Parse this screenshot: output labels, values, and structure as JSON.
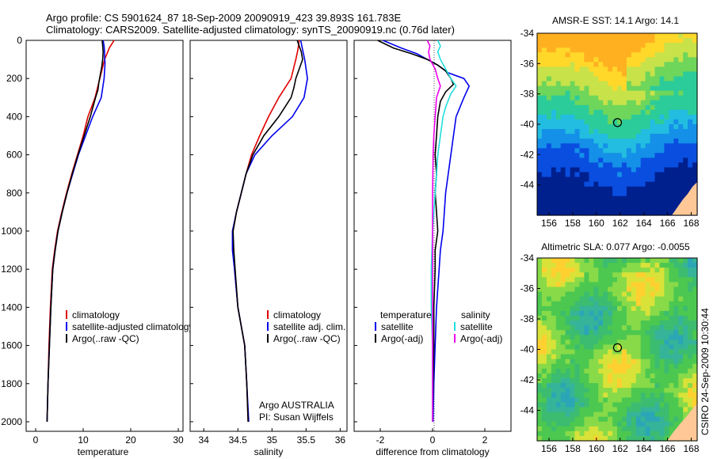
{
  "header": {
    "line1": "Argo profile: CS 5901624_87 18-Sep-2009 20090919_423 39.893S 161.783E",
    "line2": "Climatology: CARS2009. Satellite-adjusted climatology: synTS_20090919.nc (0.76d later)"
  },
  "side_label": "CSIRO 24-Sep-2009 10:30:44",
  "colors": {
    "climatology": "#e00000",
    "satellite": "#0000ee",
    "argo": "#000000",
    "sat_salinity": "#22dddd",
    "argo_salinity": "#ee00ee",
    "land": "#ffc896"
  },
  "chart_data": [
    {
      "type": "line",
      "panel": "temperature",
      "xlabel": "temperature",
      "xlim": [
        -2,
        31
      ],
      "ylim": [
        2050,
        0
      ],
      "xticks": [
        "0",
        "10",
        "20",
        "30"
      ],
      "yticks": [
        "0",
        "200",
        "400",
        "600",
        "800",
        "1000",
        "1200",
        "1400",
        "1600",
        "1800",
        "2000"
      ],
      "legend": [
        "climatology",
        "satellite-adjusted climatology",
        "Argo(..raw -QC)"
      ],
      "series": [
        {
          "name": "climatology",
          "points": [
            [
              16.5,
              0
            ],
            [
              16,
              20
            ],
            [
              15.5,
              40
            ],
            [
              15,
              70
            ],
            [
              14.5,
              100
            ],
            [
              14,
              150
            ],
            [
              13.5,
              200
            ],
            [
              12.5,
              300
            ],
            [
              11,
              400
            ],
            [
              10,
              500
            ],
            [
              8.8,
              600
            ],
            [
              7.6,
              700
            ],
            [
              6.5,
              800
            ],
            [
              5.5,
              900
            ],
            [
              4.6,
              1000
            ],
            [
              4,
              1100
            ],
            [
              3.5,
              1200
            ],
            [
              3.1,
              1400
            ],
            [
              2.8,
              1600
            ],
            [
              2.6,
              1800
            ],
            [
              2.4,
              2000
            ]
          ]
        },
        {
          "name": "satellite-adjusted climatology",
          "points": [
            [
              14.2,
              0
            ],
            [
              14.4,
              30
            ],
            [
              14.5,
              60
            ],
            [
              14.5,
              90
            ],
            [
              14.6,
              120
            ],
            [
              14.5,
              160
            ],
            [
              14.4,
              200
            ],
            [
              13.8,
              300
            ],
            [
              12,
              400
            ],
            [
              10.5,
              500
            ],
            [
              9,
              600
            ],
            [
              7.8,
              700
            ],
            [
              6.6,
              800
            ],
            [
              5.6,
              900
            ],
            [
              4.7,
              1000
            ],
            [
              4.1,
              1100
            ],
            [
              3.6,
              1200
            ],
            [
              3.2,
              1400
            ],
            [
              2.9,
              1600
            ],
            [
              2.6,
              1800
            ],
            [
              2.4,
              2000
            ]
          ]
        },
        {
          "name": "Argo(..raw -QC)",
          "points": [
            [
              14,
              0
            ],
            [
              14.1,
              30
            ],
            [
              14.2,
              60
            ],
            [
              14.1,
              100
            ],
            [
              13.9,
              140
            ],
            [
              13.6,
              180
            ],
            [
              13.3,
              220
            ],
            [
              13.1,
              260
            ],
            [
              12.6,
              300
            ],
            [
              11.5,
              400
            ],
            [
              10.2,
              500
            ],
            [
              8.9,
              600
            ],
            [
              7.7,
              700
            ],
            [
              6.6,
              800
            ],
            [
              5.6,
              900
            ],
            [
              4.7,
              1000
            ],
            [
              4.1,
              1100
            ],
            [
              3.6,
              1200
            ],
            [
              3.2,
              1400
            ],
            [
              2.9,
              1600
            ],
            [
              2.6,
              1800
            ],
            [
              2.4,
              2000
            ]
          ]
        }
      ]
    },
    {
      "type": "line",
      "panel": "salinity",
      "xlabel": "salinity",
      "xlim": [
        33.8,
        36.1
      ],
      "ylim": [
        2050,
        0
      ],
      "xticks": [
        "34",
        "34.5",
        "35",
        "35.5",
        "36"
      ],
      "legend": [
        "climatology",
        "satellite adj. clim.",
        "Argo(..raw -QC)"
      ],
      "annotation": [
        "Argo AUSTRALIA",
        "PI: Susan Wijffels"
      ],
      "series": [
        {
          "name": "climatology",
          "points": [
            [
              35.4,
              0
            ],
            [
              35.38,
              50
            ],
            [
              35.35,
              100
            ],
            [
              35.28,
              200
            ],
            [
              35.1,
              300
            ],
            [
              34.95,
              400
            ],
            [
              34.82,
              500
            ],
            [
              34.7,
              600
            ],
            [
              34.62,
              700
            ],
            [
              34.55,
              800
            ],
            [
              34.48,
              900
            ],
            [
              34.43,
              1000
            ],
            [
              34.43,
              1100
            ],
            [
              34.45,
              1200
            ],
            [
              34.5,
              1400
            ],
            [
              34.55,
              1500
            ],
            [
              34.6,
              1600
            ],
            [
              34.63,
              1800
            ],
            [
              34.65,
              2000
            ]
          ]
        },
        {
          "name": "satellite adj. clim.",
          "points": [
            [
              35.42,
              0
            ],
            [
              35.45,
              50
            ],
            [
              35.48,
              100
            ],
            [
              35.52,
              200
            ],
            [
              35.47,
              300
            ],
            [
              35.3,
              400
            ],
            [
              35.0,
              500
            ],
            [
              34.75,
              600
            ],
            [
              34.62,
              700
            ],
            [
              34.55,
              800
            ],
            [
              34.48,
              900
            ],
            [
              34.42,
              1000
            ],
            [
              34.42,
              1100
            ],
            [
              34.45,
              1200
            ],
            [
              34.5,
              1400
            ],
            [
              34.55,
              1500
            ],
            [
              34.6,
              1600
            ],
            [
              34.63,
              1800
            ],
            [
              34.66,
              2000
            ]
          ]
        },
        {
          "name": "Argo(..raw -QC)",
          "points": [
            [
              35.37,
              0
            ],
            [
              35.4,
              30
            ],
            [
              35.43,
              60
            ],
            [
              35.45,
              100
            ],
            [
              35.4,
              150
            ],
            [
              35.35,
              200
            ],
            [
              35.32,
              250
            ],
            [
              35.28,
              300
            ],
            [
              35.1,
              400
            ],
            [
              34.88,
              500
            ],
            [
              34.72,
              600
            ],
            [
              34.62,
              700
            ],
            [
              34.55,
              800
            ],
            [
              34.48,
              900
            ],
            [
              34.43,
              1000
            ],
            [
              34.44,
              1100
            ],
            [
              34.46,
              1200
            ],
            [
              34.5,
              1400
            ],
            [
              34.55,
              1500
            ],
            [
              34.6,
              1600
            ],
            [
              34.63,
              1800
            ],
            [
              34.65,
              2000
            ]
          ]
        }
      ]
    },
    {
      "type": "line",
      "panel": "difference",
      "xlabel": "difference from climatology",
      "xlim": [
        -3,
        3
      ],
      "ylim": [
        2050,
        0
      ],
      "xticks": [
        "-2",
        "0",
        "2"
      ],
      "legend_titles": [
        "temperature",
        "salinity"
      ],
      "legend": [
        "satellite",
        "Argo(-adj)",
        "satellite",
        "Argo(-adj)"
      ],
      "series": [
        {
          "name": "satellite",
          "group": "temperature",
          "points": [
            [
              -1.9,
              0
            ],
            [
              -1.2,
              40
            ],
            [
              -0.6,
              70
            ],
            [
              -0.2,
              100
            ],
            [
              0.2,
              130
            ],
            [
              0.6,
              170
            ],
            [
              1.2,
              200
            ],
            [
              1.4,
              240
            ],
            [
              1.2,
              300
            ],
            [
              0.9,
              400
            ],
            [
              0.8,
              500
            ],
            [
              0.7,
              600
            ],
            [
              0.6,
              700
            ],
            [
              0.5,
              800
            ],
            [
              0.45,
              900
            ],
            [
              0.4,
              1000
            ],
            [
              0.3,
              1100
            ],
            [
              0.25,
              1200
            ],
            [
              0.15,
              1400
            ],
            [
              0.1,
              1600
            ],
            [
              0.05,
              1800
            ],
            [
              0.02,
              2000
            ]
          ]
        },
        {
          "name": "Argo(-adj)",
          "group": "temperature",
          "points": [
            [
              -2.1,
              0
            ],
            [
              -1.5,
              40
            ],
            [
              -0.8,
              70
            ],
            [
              -0.2,
              100
            ],
            [
              0.2,
              130
            ],
            [
              0.5,
              160
            ],
            [
              0.7,
              200
            ],
            [
              0.8,
              230
            ],
            [
              0.5,
              270
            ],
            [
              0.3,
              320
            ],
            [
              0.2,
              400
            ],
            [
              0.15,
              500
            ],
            [
              0.1,
              600
            ],
            [
              0.15,
              700
            ],
            [
              0.1,
              800
            ],
            [
              0.15,
              900
            ],
            [
              0.2,
              1000
            ],
            [
              0.1,
              1100
            ],
            [
              0.1,
              1200
            ],
            [
              0.05,
              1400
            ],
            [
              0.05,
              1600
            ],
            [
              0.02,
              1800
            ],
            [
              0.0,
              2000
            ]
          ]
        },
        {
          "name": "satellite",
          "group": "salinity",
          "points": [
            [
              0.2,
              0
            ],
            [
              0.3,
              30
            ],
            [
              0.2,
              60
            ],
            [
              0.3,
              100
            ],
            [
              0.5,
              150
            ],
            [
              0.7,
              200
            ],
            [
              0.9,
              240
            ],
            [
              0.7,
              280
            ],
            [
              0.5,
              350
            ],
            [
              0.4,
              400
            ],
            [
              0.3,
              500
            ],
            [
              0.2,
              600
            ],
            [
              0.15,
              700
            ],
            [
              0.1,
              800
            ],
            [
              0.0,
              1000
            ],
            [
              -0.05,
              1200
            ],
            [
              -0.05,
              1400
            ],
            [
              0.0,
              1600
            ],
            [
              0.0,
              1800
            ],
            [
              0.0,
              2000
            ]
          ]
        },
        {
          "name": "Argo(-adj)",
          "group": "salinity",
          "points": [
            [
              -0.2,
              0
            ],
            [
              -0.1,
              30
            ],
            [
              -0.15,
              60
            ],
            [
              -0.1,
              100
            ],
            [
              0.1,
              150
            ],
            [
              0.2,
              200
            ],
            [
              0.3,
              240
            ],
            [
              0.15,
              300
            ],
            [
              0.1,
              400
            ],
            [
              0.05,
              500
            ],
            [
              0.02,
              600
            ],
            [
              0.0,
              800
            ],
            [
              0.0,
              1000
            ],
            [
              0.0,
              1200
            ],
            [
              0.0,
              1400
            ],
            [
              0.0,
              1600
            ],
            [
              0.0,
              1800
            ],
            [
              0.0,
              2000
            ]
          ]
        }
      ]
    },
    {
      "type": "heatmap",
      "panel": "sst-map",
      "title": "AMSR-E SST: 14.1 Argo: 14.1",
      "xlim": [
        155,
        168.5
      ],
      "ylim": [
        -46,
        -34
      ],
      "xticks": [
        "156",
        "158",
        "160",
        "162",
        "164",
        "166",
        "168"
      ],
      "yticks": [
        "-34",
        "-36",
        "-38",
        "-40",
        "-42",
        "-44"
      ],
      "marker": {
        "lon": 161.78,
        "lat": -39.89
      }
    },
    {
      "type": "heatmap",
      "panel": "sla-map",
      "title": "Altimetric SLA: 0.077 Argo: -0.0055",
      "xlim": [
        155,
        168.5
      ],
      "ylim": [
        -46,
        -34
      ],
      "xticks": [
        "156",
        "158",
        "160",
        "162",
        "164",
        "166",
        "168"
      ],
      "yticks": [
        "-34",
        "-36",
        "-38",
        "-40",
        "-42",
        "-44"
      ],
      "marker": {
        "lon": 161.78,
        "lat": -39.89
      }
    }
  ]
}
